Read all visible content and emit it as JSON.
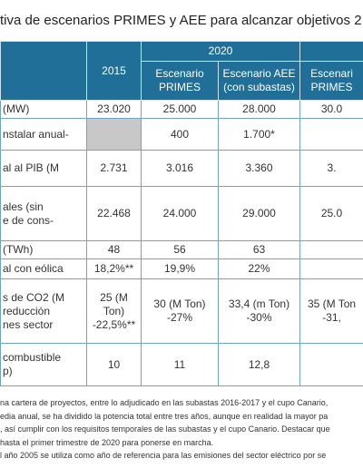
{
  "title": "tiva de escenarios PRIMES y AEE para alcanzar objetivos 2",
  "header": {
    "top": [
      "2015",
      "2020"
    ],
    "sub": [
      "Escenario\nPRIMES",
      "Escenario AEE\n(con subastas)",
      "Escenari\nPRIMES"
    ]
  },
  "rows": [
    [
      "(MW)",
      "23.020",
      "25.000",
      "28.000",
      "30.0"
    ],
    [
      "nstalar anual-",
      null,
      "400",
      "1.700*",
      null
    ],
    [
      "al al PIB (M",
      "2.731",
      "3.016",
      "3.360",
      "3."
    ],
    [
      "ales (sin\ne de cons-",
      "22.468",
      "24.000",
      "29.000",
      "25.0"
    ],
    [
      "(TWh)",
      "48",
      "56",
      "63",
      null
    ],
    [
      "al con eólica",
      "18,2%**",
      "19,9%",
      "22%",
      null
    ],
    [
      "s de CO2 (M\nreducción\nnes sector",
      "25 (M Ton)\n-22,5%**",
      "30 (M Ton)\n-27%",
      "33,4 (m Ton)\n-30%",
      "35 (M Ton\n-31,"
    ],
    [
      "combustible\np)",
      "10",
      "11",
      "12,8",
      null
    ]
  ],
  "footnotes": [
    "na cartera de proyectos, entre lo adjudicado en las subastas 2016-2017 y el cupo Canario,",
    "edia anual, se ha dividido la potencia total entre tres años, aunque en realidad la mayor pa",
    ", así cumplir con los requisitos temporales de las subastas y el cupo Canario. Destacar que",
    "hasta el primer trimestre de 2020 para ponerse en marcha.",
    "l año 2005 se utiliza como año de referencia para las emisiones del sector eléctrico por se"
  ]
}
